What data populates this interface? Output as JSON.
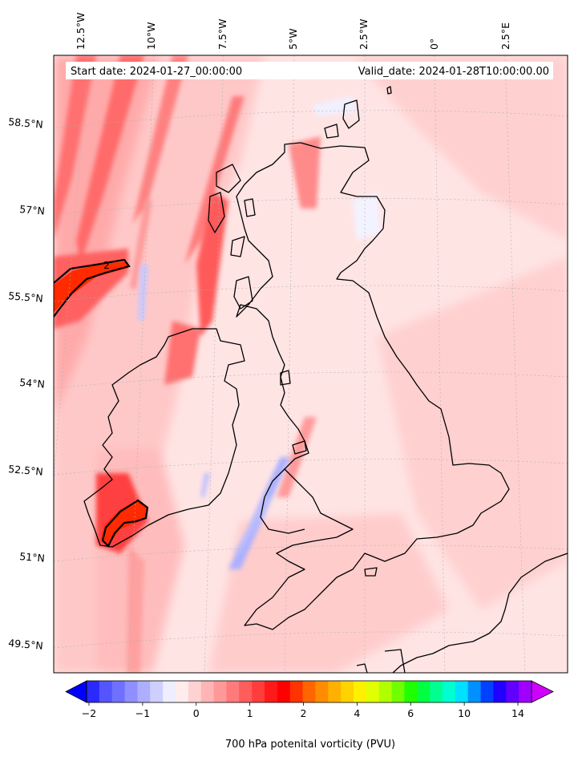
{
  "header": {
    "start_label": "Start date: 2024-01-27_00:00:00",
    "valid_label": "Valid_date: 2024-01-28T10:00:00.00"
  },
  "axes": {
    "lon_labels": [
      "12.5°W",
      "10°W",
      "7.5°W",
      "5°W",
      "2.5°W",
      "0°",
      "2.5°E"
    ],
    "lat_labels": [
      "58.5°N",
      "57°N",
      "55.5°N",
      "54°N",
      "52.5°N",
      "51°N",
      "49.5°N"
    ]
  },
  "contour": {
    "label": "2"
  },
  "colorbar": {
    "label": "700 hPa potenital vorticity (PVU)",
    "tick_labels": [
      "−2",
      "−1",
      "0",
      "1",
      "2",
      "4",
      "6",
      "10",
      "14"
    ],
    "colors": [
      "#0000ff",
      "#2a2aff",
      "#5555ff",
      "#7070ff",
      "#8f8fff",
      "#aeaeff",
      "#cfcfff",
      "#eeeeff",
      "#ffecec",
      "#ffd2d2",
      "#ffb5b5",
      "#ff9999",
      "#ff7a7a",
      "#ff5c5c",
      "#ff3d3d",
      "#ff1a1a",
      "#ff0000",
      "#ff3300",
      "#ff6600",
      "#ff8c00",
      "#ffb000",
      "#ffd200",
      "#fff000",
      "#e0ff00",
      "#b0ff00",
      "#70ff00",
      "#20ff00",
      "#00ff40",
      "#00ff90",
      "#00ffd0",
      "#00e0ff",
      "#0090ff",
      "#0040ff",
      "#2000ff",
      "#6000ff",
      "#a000ff",
      "#d000ff"
    ]
  },
  "colors": {
    "background_field": "#ffd8d8",
    "coast": "#000000"
  }
}
